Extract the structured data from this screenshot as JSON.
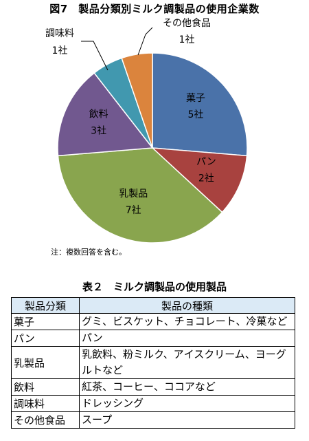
{
  "figure": {
    "title": "図7　製品分類別ミルク調製品の使用企業数",
    "note": "注：複数回答を含む。"
  },
  "chart_data": {
    "type": "pie",
    "title": "図7　製品分類別ミルク調製品の使用企業数",
    "unit": "社",
    "slices": [
      {
        "name": "菓子",
        "value": 5,
        "label": "5社",
        "color": "#4a72a9"
      },
      {
        "name": "パン",
        "value": 2,
        "label": "2社",
        "color": "#a8423f"
      },
      {
        "name": "乳製品",
        "value": 7,
        "label": "7社",
        "color": "#89a54e"
      },
      {
        "name": "飲料",
        "value": 3,
        "label": "3社",
        "color": "#71588f"
      },
      {
        "name": "調味料",
        "value": 1,
        "label": "1社",
        "color": "#4198af"
      },
      {
        "name": "その他食品",
        "value": 1,
        "label": "1社",
        "color": "#db843d"
      }
    ]
  },
  "table": {
    "title": "表２　ミルク調製品の使用製品",
    "headers": [
      "製品分類",
      "製品の種類"
    ],
    "rows": [
      [
        "菓子",
        "グミ、ビスケット、チョコレート、冷菓など"
      ],
      [
        "パン",
        "パン"
      ],
      [
        "乳製品",
        "乳飲料、粉ミルク、アイスクリーム、ヨーグルトなど"
      ],
      [
        "飲料",
        "紅茶、コーヒー、ココアなど"
      ],
      [
        "調味料",
        "ドレッシング"
      ],
      [
        "その他食品",
        "スープ"
      ]
    ],
    "header_color": "#dbeaf6"
  }
}
